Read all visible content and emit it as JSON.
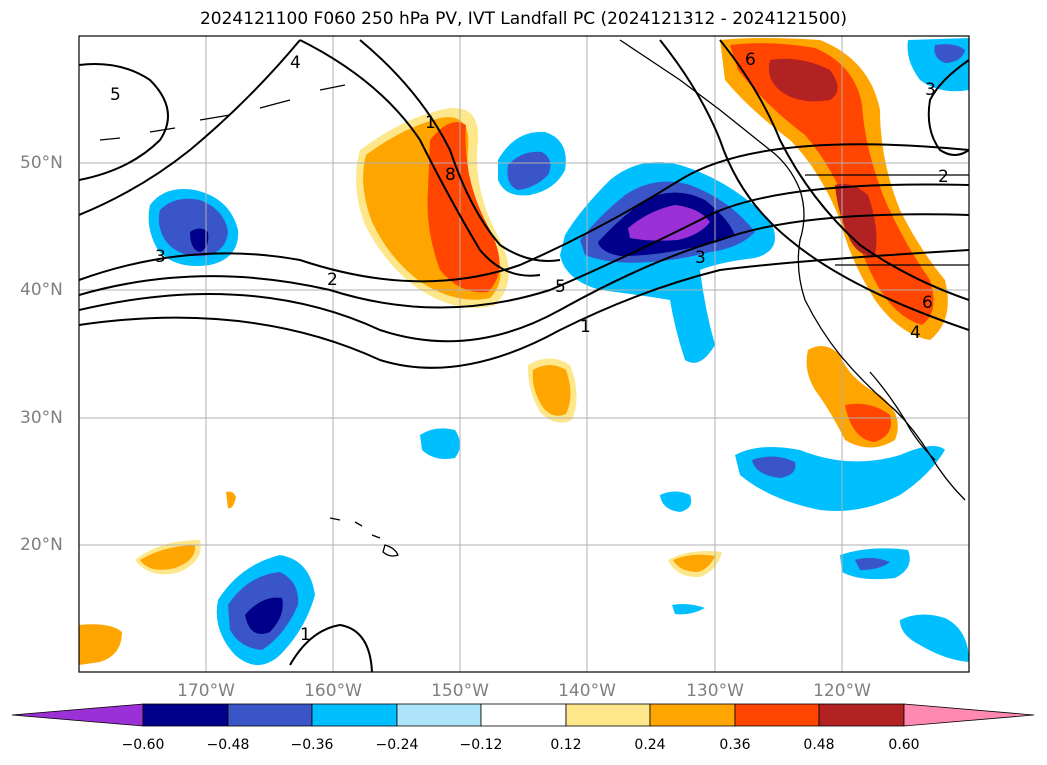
{
  "title": "2024121100 F060 250 hPa PV, IVT Landfall PC (2024121312 - 2024121500)",
  "latitude_labels": [
    "50°N",
    "40°N",
    "30°N",
    "20°N"
  ],
  "longitude_labels": [
    "170°W",
    "160°W",
    "150°W",
    "140°W",
    "130°W",
    "120°W"
  ],
  "contour_labels": [
    "5",
    "4",
    "3",
    "2",
    "1",
    "8",
    "5",
    "3",
    "1",
    "6",
    "6",
    "4",
    "3",
    "2",
    "1"
  ],
  "colorbar": {
    "ticks": [
      "−0.60",
      "−0.48",
      "−0.36",
      "−0.24",
      "−0.12",
      "0.12",
      "0.24",
      "0.36",
      "0.48",
      "0.60"
    ],
    "colors": [
      "#9b30d6",
      "#00008b",
      "#3a55c8",
      "#00bfff",
      "#aee4fa",
      "#ffffff",
      "#fde78a",
      "#ffa500",
      "#ff4500",
      "#b22222",
      "#ff89b0"
    ]
  },
  "colors": {
    "land_outline": "#000000",
    "grid": "#b0b0b0",
    "contour": "#000000"
  }
}
